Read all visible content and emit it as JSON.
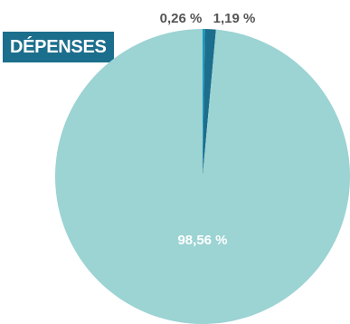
{
  "chart_data": {
    "type": "pie",
    "title": "DÉPENSES",
    "slices": [
      {
        "label": "0,26 %",
        "value": 0.26,
        "color": "#1a9bc2"
      },
      {
        "label": "1,19 %",
        "value": 1.19,
        "color": "#1b6e8c"
      },
      {
        "label": "98,56 %",
        "value": 98.56,
        "color": "#9cd3d3"
      }
    ],
    "label_colors": {
      "outside": "#555555",
      "inside": "#ffffff"
    }
  }
}
